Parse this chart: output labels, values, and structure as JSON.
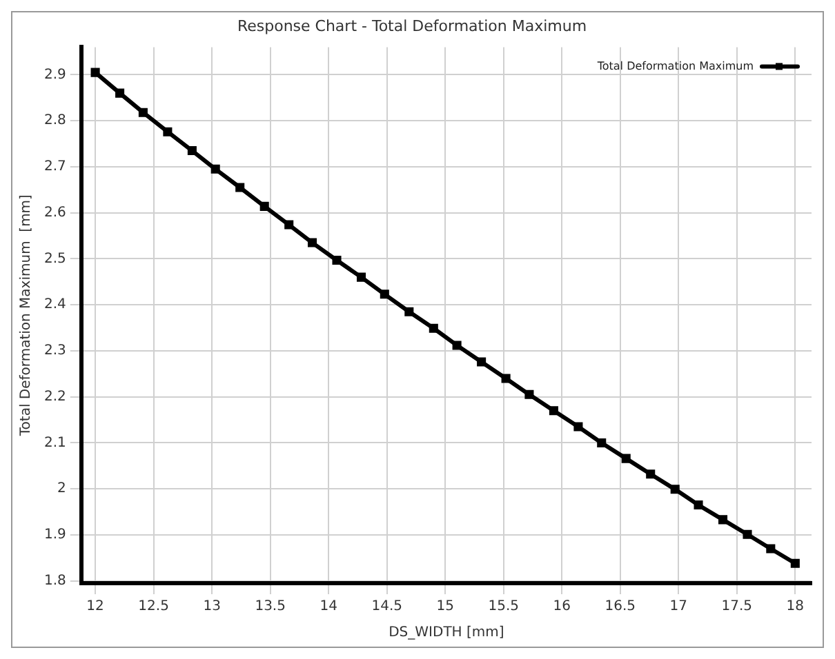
{
  "chart_data": {
    "type": "line",
    "title": "Response Chart - Total Deformation Maximum",
    "xlabel": "DS_WIDTH [mm]",
    "ylabel": "Total Deformation Maximum  [mm]",
    "x": [
      12,
      12.21,
      12.41,
      12.62,
      12.83,
      13.03,
      13.24,
      13.45,
      13.66,
      13.86,
      14.07,
      14.28,
      14.48,
      14.69,
      14.9,
      15.1,
      15.31,
      15.52,
      15.72,
      15.93,
      16.14,
      16.34,
      16.55,
      16.76,
      16.97,
      17.17,
      17.38,
      17.59,
      17.79,
      18
    ],
    "series": [
      {
        "name": "Total Deformation Maximum",
        "color": "#000000",
        "values": [
          2.905,
          2.86,
          2.818,
          2.776,
          2.735,
          2.695,
          2.655,
          2.614,
          2.574,
          2.535,
          2.497,
          2.46,
          2.423,
          2.385,
          2.349,
          2.312,
          2.276,
          2.24,
          2.205,
          2.17,
          2.135,
          2.1,
          2.066,
          2.032,
          1.999,
          1.965,
          1.933,
          1.901,
          1.87,
          1.838
        ]
      }
    ],
    "xlim": [
      11.88,
      18.14
    ],
    "ylim": [
      1.795,
      2.96
    ],
    "xticks": [
      12,
      12.5,
      13,
      13.5,
      14,
      14.5,
      15,
      15.5,
      16,
      16.5,
      17,
      17.5,
      18
    ],
    "yticks": [
      1.8,
      1.9,
      2,
      2.1,
      2.2,
      2.3,
      2.4,
      2.5,
      2.6,
      2.7,
      2.8,
      2.9
    ],
    "grid": true,
    "legend": "top right",
    "marker": "square",
    "line_style": "solid"
  }
}
